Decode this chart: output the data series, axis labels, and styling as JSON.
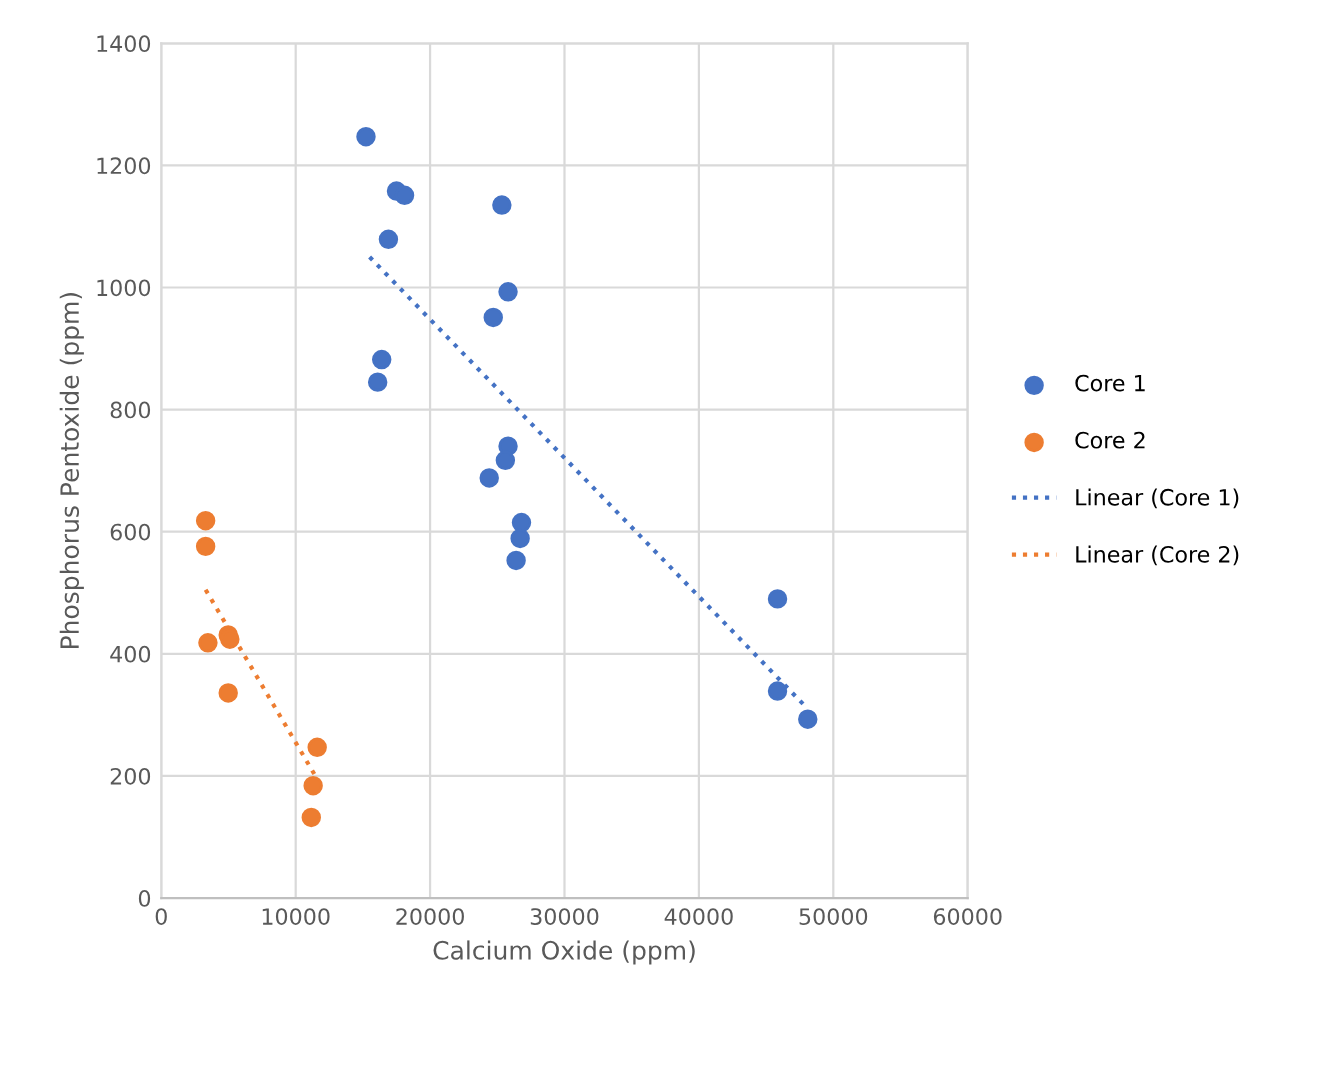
{
  "chart_data": {
    "type": "scatter",
    "xlabel": "Calcium Oxide (ppm)",
    "ylabel": "Phosphorus Pentoxide (ppm)",
    "xlim": [
      0,
      60000
    ],
    "xticks": [
      0,
      10000,
      20000,
      30000,
      40000,
      50000,
      60000
    ],
    "ylim": [
      0,
      1400
    ],
    "yticks": [
      0,
      200,
      400,
      600,
      800,
      1000,
      1200,
      1400
    ],
    "grid": true,
    "legend": "right",
    "series": [
      {
        "name": "Core 1",
        "marker": "circle",
        "color": "#4472c4",
        "x": [
          15230,
          17500,
          18100,
          16900,
          25340,
          25800,
          24700,
          16400,
          16100,
          25800,
          25600,
          24400,
          26800,
          26700,
          26400,
          45850,
          45850,
          48100
        ],
        "values": [
          1247,
          1158,
          1151,
          1079,
          1135,
          993,
          951,
          882,
          845,
          740,
          717,
          688,
          615,
          589,
          553,
          490,
          339,
          293
        ]
      },
      {
        "name": "Core 2",
        "marker": "circle",
        "color": "#ed7d31",
        "x": [
          3300,
          3300,
          3470,
          4980,
          5100,
          4980,
          11600,
          11300,
          11160
        ],
        "values": [
          618,
          576,
          418,
          431,
          424,
          336,
          247,
          184,
          132
        ]
      },
      {
        "name": "Linear (Core 1)",
        "type": "line",
        "marker": "none",
        "line_style": "dotted",
        "color": "#4472c4",
        "x": [
          15500,
          48100
        ],
        "values": [
          1050,
          310
        ]
      },
      {
        "name": "Linear (Core 2)",
        "type": "line",
        "marker": "none",
        "line_style": "dotted",
        "color": "#ed7d31",
        "x": [
          3300,
          11600
        ],
        "values": [
          505,
          195
        ]
      }
    ]
  }
}
